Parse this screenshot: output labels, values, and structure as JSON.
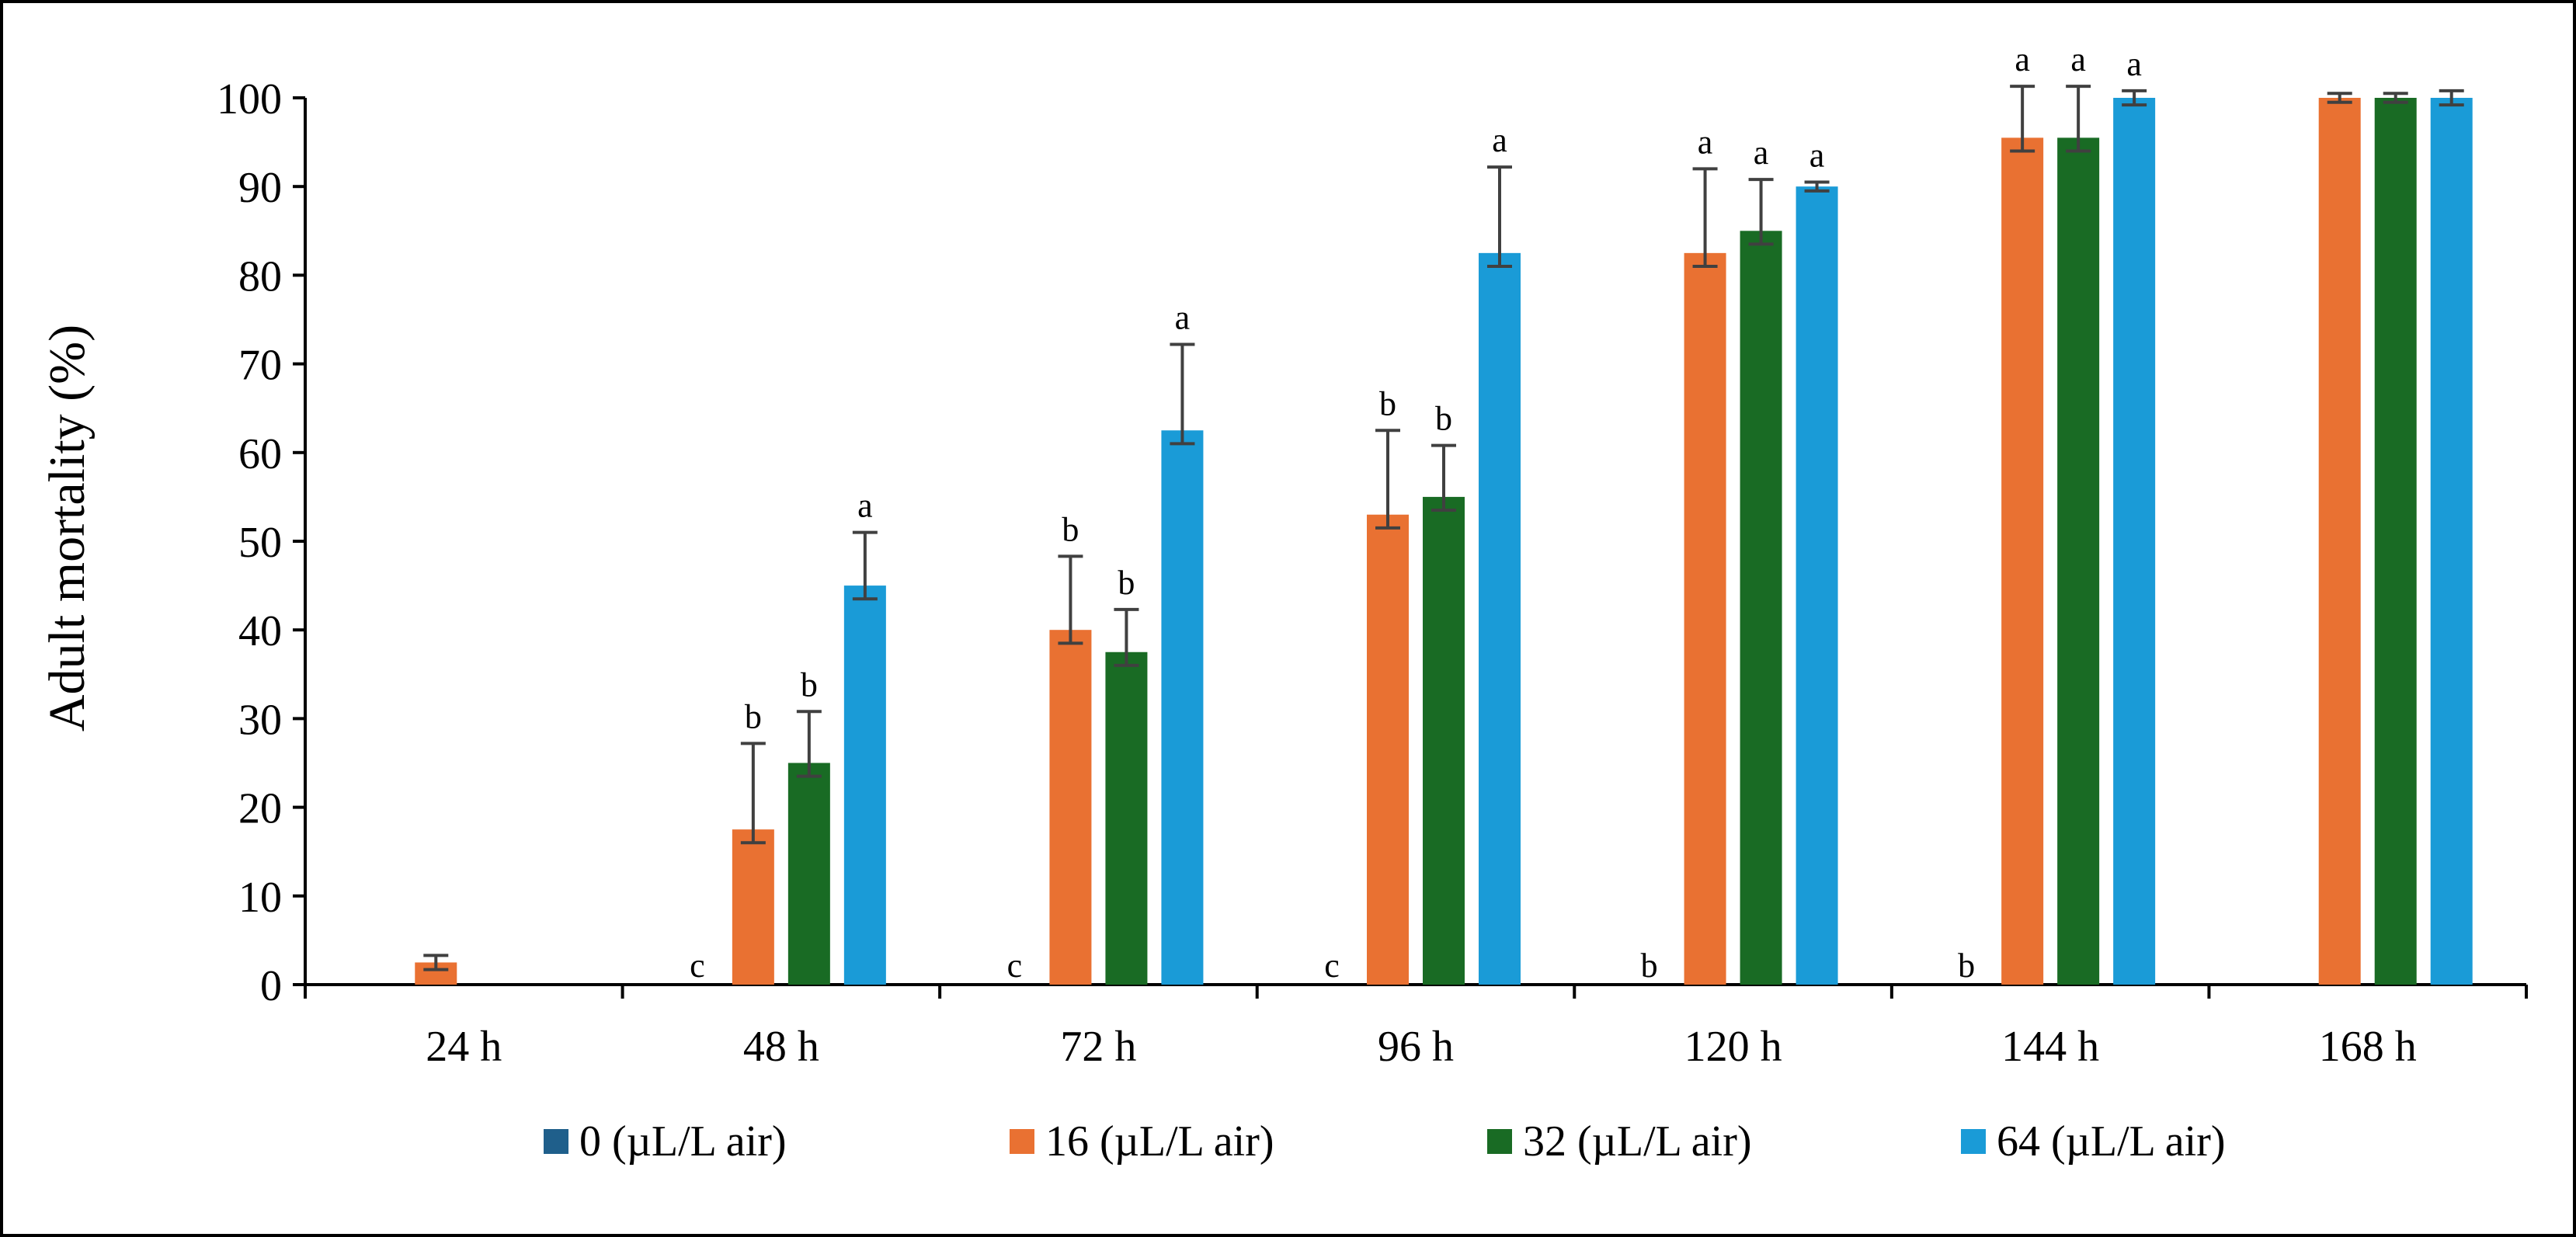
{
  "chart_data": {
    "type": "bar",
    "title": "",
    "xlabel": "",
    "ylabel": "Adult mortality (%)",
    "ylim": [
      0,
      100
    ],
    "yticks": [
      0,
      10,
      20,
      30,
      40,
      50,
      60,
      70,
      80,
      90,
      100
    ],
    "grid": false,
    "legend_position": "bottom",
    "categories": [
      "24 h",
      "48 h",
      "72 h",
      "96 h",
      "120 h",
      "144 h",
      "168 h"
    ],
    "series": [
      {
        "name": "0 (µL/L air)",
        "color": "#1f5f8b",
        "values": [
          0,
          0,
          0,
          0,
          0,
          0,
          0
        ],
        "errors": [
          0,
          0,
          0,
          0,
          0,
          0,
          0
        ],
        "labels": [
          "",
          "c",
          "c",
          "c",
          "b",
          "b",
          ""
        ]
      },
      {
        "name": "16 (µL/L air)",
        "color": "#e97132",
        "values": [
          2.5,
          17.5,
          40,
          53,
          82.5,
          95.5,
          100
        ],
        "errors": [
          0.8,
          9.7,
          8.3,
          9.5,
          9.5,
          5.8,
          0.5
        ],
        "labels": [
          "",
          "b",
          "b",
          "b",
          "a",
          "a",
          ""
        ]
      },
      {
        "name": "32 (µL/L air)",
        "color": "#196b24",
        "values": [
          0,
          25,
          37.5,
          55,
          85,
          95.5,
          100
        ],
        "errors": [
          0,
          5.8,
          4.8,
          5.8,
          5.8,
          5.8,
          0.5
        ],
        "labels": [
          "",
          "b",
          "b",
          "b",
          "a",
          "a",
          ""
        ]
      },
      {
        "name": "64 (µL/L air)",
        "color": "#1a9bd7",
        "values": [
          0,
          45,
          62.5,
          82.5,
          90,
          100,
          100
        ],
        "errors": [
          0,
          6,
          9.7,
          9.7,
          0.5,
          0.8,
          0.8
        ],
        "labels": [
          "",
          "a",
          "a",
          "a",
          "a",
          "a",
          ""
        ]
      }
    ]
  }
}
